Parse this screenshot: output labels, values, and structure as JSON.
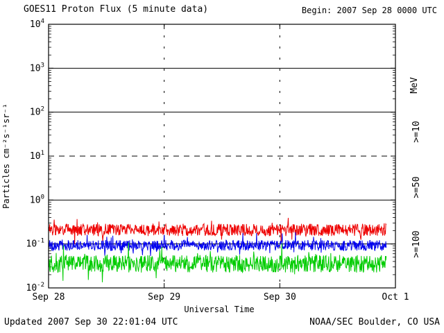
{
  "header": {
    "title": "GOES11 Proton Flux (5 minute data)",
    "begin_label": "Begin: 2007 Sep 28 0000 UTC"
  },
  "footer": {
    "updated": "Updated 2007 Sep 30 22:01:04 UTC",
    "credit": "NOAA/SEC Boulder, CO USA"
  },
  "chart_data": {
    "type": "line",
    "title": "GOES11 Proton Flux (5 minute data)",
    "xlabel": "Universal Time",
    "ylabel": "Particles cm⁻²s⁻¹sr⁻¹",
    "units_label": "MeV",
    "x_ticks": [
      "Sep 28",
      "Sep 29",
      "Sep 30",
      "Oct 1"
    ],
    "x_span_days": 3,
    "cadence_minutes": 5,
    "data_end_day": 2.92,
    "y_scale": "log",
    "ylim_exp": [
      -2,
      4
    ],
    "ytick_base": "10",
    "ytick_exponents": [
      4,
      3,
      2,
      1,
      0,
      -1,
      -2
    ],
    "gridlines": {
      "solid_exp": [
        3,
        2,
        0,
        -1
      ],
      "dashed_exp": [
        1
      ],
      "vertical_dotted_days": [
        1,
        2
      ]
    },
    "spike_prob": 0.06,
    "series": [
      {
        "label": ">=10",
        "color": "#ee0000",
        "approx_mean_flux": 0.21,
        "log10_mean": -0.68,
        "log10_noise": 0.14,
        "log10_spike": 0.22
      },
      {
        "label": ">=50",
        "color": "#0000ee",
        "approx_mean_flux": 0.095,
        "log10_mean": -1.03,
        "log10_noise": 0.12,
        "log10_spike": 0.2
      },
      {
        "label": ">=100",
        "color": "#00cc00",
        "approx_mean_flux": 0.035,
        "log10_mean": -1.45,
        "log10_noise": 0.2,
        "log10_spike": 0.3
      }
    ]
  }
}
